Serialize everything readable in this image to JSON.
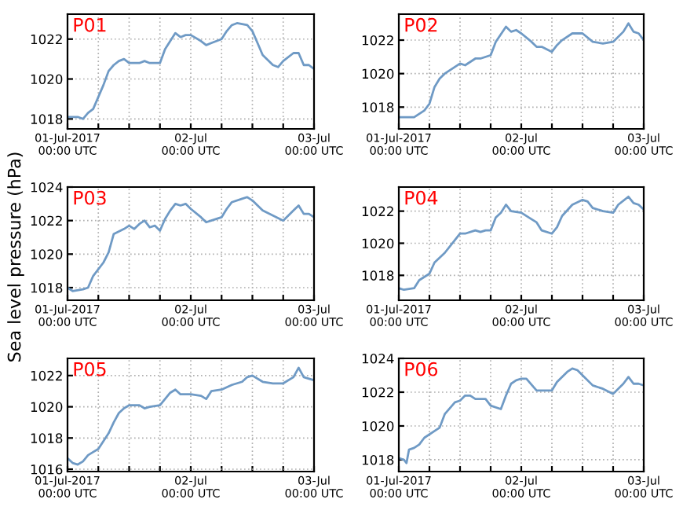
{
  "chart_data": [
    {
      "type": "line",
      "title": "P01",
      "x": [
        "2017-07-01T00:00",
        "2017-07-01T02:00",
        "2017-07-01T03:00",
        "2017-07-01T04:00",
        "2017-07-01T05:00",
        "2017-07-01T06:00",
        "2017-07-01T07:00",
        "2017-07-01T08:00",
        "2017-07-01T09:00",
        "2017-07-01T10:00",
        "2017-07-01T11:00",
        "2017-07-01T12:00",
        "2017-07-01T14:00",
        "2017-07-01T15:00",
        "2017-07-01T16:00",
        "2017-07-01T18:00",
        "2017-07-01T19:00",
        "2017-07-01T20:00",
        "2017-07-01T21:00",
        "2017-07-01T22:00",
        "2017-07-01T23:00",
        "2017-07-02T00:00",
        "2017-07-02T02:00",
        "2017-07-02T03:00",
        "2017-07-02T04:00",
        "2017-07-02T06:00",
        "2017-07-02T07:00",
        "2017-07-02T08:00",
        "2017-07-02T09:00",
        "2017-07-02T11:00",
        "2017-07-02T12:00",
        "2017-07-02T13:00",
        "2017-07-02T14:00",
        "2017-07-02T16:00",
        "2017-07-02T17:00",
        "2017-07-02T18:00",
        "2017-07-02T20:00",
        "2017-07-02T21:00",
        "2017-07-02T22:00",
        "2017-07-02T23:00",
        "2017-07-03T00:00"
      ],
      "series": [
        {
          "color": "#6f9ac5",
          "values": [
            1018.1,
            1018.1,
            1018.0,
            1018.3,
            1018.5,
            1019.1,
            1019.7,
            1020.4,
            1020.7,
            1020.9,
            1021.0,
            1020.8,
            1020.8,
            1020.9,
            1020.8,
            1020.8,
            1021.5,
            1021.9,
            1022.3,
            1022.1,
            1022.2,
            1022.2,
            1021.9,
            1021.7,
            1021.8,
            1022.0,
            1022.4,
            1022.7,
            1022.8,
            1022.7,
            1022.4,
            1021.8,
            1021.2,
            1020.7,
            1020.6,
            1020.9,
            1021.3,
            1021.3,
            1020.7,
            1020.7,
            1020.5
          ]
        }
      ],
      "xlim": [
        "2017-07-01T00:00",
        "2017-07-03T00:00"
      ],
      "ylim": [
        1017.5,
        1023.25
      ],
      "yticks": [
        1018,
        1020,
        1022
      ],
      "xticks": [
        {
          "value": "2017-07-01T00:00",
          "label": "01-Jul-2017\n00:00 UTC"
        },
        {
          "value": "2017-07-01T06:00",
          "label": null
        },
        {
          "value": "2017-07-01T12:00",
          "label": null
        },
        {
          "value": "2017-07-01T18:00",
          "label": null
        },
        {
          "value": "2017-07-02T00:00",
          "label": "02-Jul\n00:00 UTC"
        },
        {
          "value": "2017-07-02T06:00",
          "label": null
        },
        {
          "value": "2017-07-02T12:00",
          "label": null
        },
        {
          "value": "2017-07-02T18:00",
          "label": null
        },
        {
          "value": "2017-07-03T00:00",
          "label": "03-Jul\n00:00 UTC"
        }
      ],
      "grid": true
    },
    {
      "type": "line",
      "title": "P02",
      "x": [
        "2017-07-01T00:00",
        "2017-07-01T01:00",
        "2017-07-01T03:00",
        "2017-07-01T05:00",
        "2017-07-01T06:00",
        "2017-07-01T07:00",
        "2017-07-01T08:00",
        "2017-07-01T09:00",
        "2017-07-01T10:00",
        "2017-07-01T12:00",
        "2017-07-01T13:00",
        "2017-07-01T15:00",
        "2017-07-01T16:00",
        "2017-07-01T18:00",
        "2017-07-01T19:00",
        "2017-07-01T21:00",
        "2017-07-01T22:00",
        "2017-07-01T23:00",
        "2017-07-02T00:00",
        "2017-07-02T02:00",
        "2017-07-02T03:00",
        "2017-07-02T04:00",
        "2017-07-02T06:00",
        "2017-07-02T07:00",
        "2017-07-02T08:00",
        "2017-07-02T10:00",
        "2017-07-02T12:00",
        "2017-07-02T14:00",
        "2017-07-02T16:00",
        "2017-07-02T18:00",
        "2017-07-02T20:00",
        "2017-07-02T21:00",
        "2017-07-02T22:00",
        "2017-07-02T23:00",
        "2017-07-03T00:00"
      ],
      "series": [
        {
          "color": "#6f9ac5",
          "values": [
            1017.4,
            1017.4,
            1017.4,
            1017.8,
            1018.2,
            1019.2,
            1019.7,
            1020.0,
            1020.2,
            1020.6,
            1020.5,
            1020.9,
            1020.9,
            1021.1,
            1021.9,
            1022.8,
            1022.5,
            1022.6,
            1022.4,
            1021.9,
            1021.6,
            1021.6,
            1021.3,
            1021.7,
            1022.0,
            1022.4,
            1022.4,
            1021.9,
            1021.8,
            1021.9,
            1022.5,
            1023.0,
            1022.5,
            1022.4,
            1022.0
          ]
        }
      ],
      "xlim": [
        "2017-07-01T00:00",
        "2017-07-03T00:00"
      ],
      "ylim": [
        1016.7,
        1023.55
      ],
      "yticks": [
        1018,
        1020,
        1022
      ],
      "xticks": [
        {
          "value": "2017-07-01T00:00",
          "label": "01-Jul-2017\n00:00 UTC"
        },
        {
          "value": "2017-07-01T06:00",
          "label": null
        },
        {
          "value": "2017-07-01T12:00",
          "label": null
        },
        {
          "value": "2017-07-01T18:00",
          "label": null
        },
        {
          "value": "2017-07-02T00:00",
          "label": "02-Jul\n00:00 UTC"
        },
        {
          "value": "2017-07-02T06:00",
          "label": null
        },
        {
          "value": "2017-07-02T12:00",
          "label": null
        },
        {
          "value": "2017-07-02T18:00",
          "label": null
        },
        {
          "value": "2017-07-03T00:00",
          "label": "03-Jul\n00:00 UTC"
        }
      ],
      "grid": true
    },
    {
      "type": "line",
      "title": "P03",
      "ylabel": "Sea level pressure (hPa)",
      "x": [
        "2017-07-01T00:00",
        "2017-07-01T01:00",
        "2017-07-01T03:00",
        "2017-07-01T04:00",
        "2017-07-01T05:00",
        "2017-07-01T07:00",
        "2017-07-01T08:00",
        "2017-07-01T09:00",
        "2017-07-01T11:00",
        "2017-07-01T12:00",
        "2017-07-01T13:00",
        "2017-07-01T14:00",
        "2017-07-01T15:00",
        "2017-07-01T16:00",
        "2017-07-01T17:00",
        "2017-07-01T18:00",
        "2017-07-01T19:00",
        "2017-07-01T20:00",
        "2017-07-01T21:00",
        "2017-07-01T22:00",
        "2017-07-01T23:00",
        "2017-07-02T00:00",
        "2017-07-02T02:00",
        "2017-07-02T03:00",
        "2017-07-02T04:00",
        "2017-07-02T06:00",
        "2017-07-02T07:00",
        "2017-07-02T08:00",
        "2017-07-02T10:00",
        "2017-07-02T11:00",
        "2017-07-02T12:00",
        "2017-07-02T14:00",
        "2017-07-02T16:00",
        "2017-07-02T18:00",
        "2017-07-02T20:00",
        "2017-07-02T21:00",
        "2017-07-02T22:00",
        "2017-07-02T23:00",
        "2017-07-03T00:00"
      ],
      "series": [
        {
          "color": "#6f9ac5",
          "values": [
            1018.0,
            1017.8,
            1017.9,
            1018.0,
            1018.7,
            1019.5,
            1020.1,
            1021.2,
            1021.5,
            1021.7,
            1021.5,
            1021.8,
            1022.0,
            1021.6,
            1021.7,
            1021.4,
            1022.1,
            1022.6,
            1023.0,
            1022.9,
            1023.0,
            1022.7,
            1022.2,
            1021.9,
            1022.0,
            1022.2,
            1022.7,
            1023.1,
            1023.3,
            1023.4,
            1023.2,
            1022.6,
            1022.3,
            1022.0,
            1022.6,
            1022.9,
            1022.4,
            1022.4,
            1022.2
          ]
        }
      ],
      "xlim": [
        "2017-07-01T00:00",
        "2017-07-03T00:00"
      ],
      "ylim": [
        1017.25,
        1024
      ],
      "yticks": [
        1018,
        1020,
        1022,
        1024
      ],
      "xticks": [
        {
          "value": "2017-07-01T00:00",
          "label": "01-Jul-2017\n00:00 UTC"
        },
        {
          "value": "2017-07-01T06:00",
          "label": null
        },
        {
          "value": "2017-07-01T12:00",
          "label": null
        },
        {
          "value": "2017-07-01T18:00",
          "label": null
        },
        {
          "value": "2017-07-02T00:00",
          "label": "02-Jul\n00:00 UTC"
        },
        {
          "value": "2017-07-02T06:00",
          "label": null
        },
        {
          "value": "2017-07-02T12:00",
          "label": null
        },
        {
          "value": "2017-07-02T18:00",
          "label": null
        },
        {
          "value": "2017-07-03T00:00",
          "label": "03-Jul\n00:00 UTC"
        }
      ],
      "grid": true
    },
    {
      "type": "line",
      "title": "P04",
      "x": [
        "2017-07-01T00:00",
        "2017-07-01T01:00",
        "2017-07-01T03:00",
        "2017-07-01T04:00",
        "2017-07-01T06:00",
        "2017-07-01T07:00",
        "2017-07-01T09:00",
        "2017-07-01T11:00",
        "2017-07-01T12:00",
        "2017-07-01T13:00",
        "2017-07-01T15:00",
        "2017-07-01T16:00",
        "2017-07-01T17:00",
        "2017-07-01T18:00",
        "2017-07-01T19:00",
        "2017-07-01T20:00",
        "2017-07-01T21:00",
        "2017-07-01T22:00",
        "2017-07-02T00:00",
        "2017-07-02T02:00",
        "2017-07-02T03:00",
        "2017-07-02T04:00",
        "2017-07-02T06:00",
        "2017-07-02T07:00",
        "2017-07-02T08:00",
        "2017-07-02T10:00",
        "2017-07-02T12:00",
        "2017-07-02T13:00",
        "2017-07-02T14:00",
        "2017-07-02T16:00",
        "2017-07-02T18:00",
        "2017-07-02T19:00",
        "2017-07-02T21:00",
        "2017-07-02T22:00",
        "2017-07-02T23:00",
        "2017-07-03T00:00"
      ],
      "series": [
        {
          "color": "#6f9ac5",
          "values": [
            1017.2,
            1017.1,
            1017.2,
            1017.7,
            1018.1,
            1018.8,
            1019.4,
            1020.2,
            1020.6,
            1020.6,
            1020.8,
            1020.7,
            1020.8,
            1020.8,
            1021.6,
            1021.9,
            1022.4,
            1022.0,
            1021.9,
            1021.5,
            1021.3,
            1020.8,
            1020.6,
            1021.0,
            1021.7,
            1022.4,
            1022.7,
            1022.6,
            1022.2,
            1022.0,
            1021.9,
            1022.4,
            1022.9,
            1022.5,
            1022.4,
            1022.1
          ]
        }
      ],
      "xlim": [
        "2017-07-01T00:00",
        "2017-07-03T00:00"
      ],
      "ylim": [
        1016.45,
        1023.5
      ],
      "yticks": [
        1018,
        1020,
        1022
      ],
      "xticks": [
        {
          "value": "2017-07-01T00:00",
          "label": "01-Jul-2017\n00:00 UTC"
        },
        {
          "value": "2017-07-01T06:00",
          "label": null
        },
        {
          "value": "2017-07-01T12:00",
          "label": null
        },
        {
          "value": "2017-07-01T18:00",
          "label": null
        },
        {
          "value": "2017-07-02T00:00",
          "label": "02-Jul\n00:00 UTC"
        },
        {
          "value": "2017-07-02T06:00",
          "label": null
        },
        {
          "value": "2017-07-02T12:00",
          "label": null
        },
        {
          "value": "2017-07-02T18:00",
          "label": null
        },
        {
          "value": "2017-07-03T00:00",
          "label": "03-Jul\n00:00 UTC"
        }
      ],
      "grid": true
    },
    {
      "type": "line",
      "title": "P05",
      "x": [
        "2017-07-01T00:00",
        "2017-07-01T01:00",
        "2017-07-01T02:00",
        "2017-07-01T03:00",
        "2017-07-01T04:00",
        "2017-07-01T05:00",
        "2017-07-01T06:00",
        "2017-07-01T07:00",
        "2017-07-01T08:00",
        "2017-07-01T09:00",
        "2017-07-01T10:00",
        "2017-07-01T11:00",
        "2017-07-01T12:00",
        "2017-07-01T14:00",
        "2017-07-01T15:00",
        "2017-07-01T16:00",
        "2017-07-01T18:00",
        "2017-07-01T19:00",
        "2017-07-01T20:00",
        "2017-07-01T21:00",
        "2017-07-01T22:00",
        "2017-07-02T00:00",
        "2017-07-02T02:00",
        "2017-07-02T03:00",
        "2017-07-02T04:00",
        "2017-07-02T06:00",
        "2017-07-02T08:00",
        "2017-07-02T10:00",
        "2017-07-02T11:00",
        "2017-07-02T12:00",
        "2017-07-02T14:00",
        "2017-07-02T16:00",
        "2017-07-02T18:00",
        "2017-07-02T20:00",
        "2017-07-02T21:00",
        "2017-07-02T22:00",
        "2017-07-02T23:00",
        "2017-07-03T00:00"
      ],
      "series": [
        {
          "color": "#6f9ac5",
          "values": [
            1016.7,
            1016.4,
            1016.3,
            1016.5,
            1016.9,
            1017.1,
            1017.3,
            1017.8,
            1018.3,
            1019.0,
            1019.6,
            1019.9,
            1020.1,
            1020.1,
            1019.9,
            1020.0,
            1020.1,
            1020.5,
            1020.9,
            1021.1,
            1020.8,
            1020.8,
            1020.7,
            1020.5,
            1021.0,
            1021.1,
            1021.4,
            1021.6,
            1021.9,
            1022.0,
            1021.6,
            1021.5,
            1021.5,
            1021.9,
            1022.5,
            1021.9,
            1021.8,
            1021.7
          ]
        }
      ],
      "xlim": [
        "2017-07-01T00:00",
        "2017-07-03T00:00"
      ],
      "ylim": [
        1015.85,
        1023.1
      ],
      "yticks": [
        1016,
        1018,
        1020,
        1022
      ],
      "xticks": [
        {
          "value": "2017-07-01T00:00",
          "label": "01-Jul-2017\n00:00 UTC"
        },
        {
          "value": "2017-07-01T06:00",
          "label": null
        },
        {
          "value": "2017-07-01T12:00",
          "label": null
        },
        {
          "value": "2017-07-01T18:00",
          "label": null
        },
        {
          "value": "2017-07-02T00:00",
          "label": "02-Jul\n00:00 UTC"
        },
        {
          "value": "2017-07-02T06:00",
          "label": null
        },
        {
          "value": "2017-07-02T12:00",
          "label": null
        },
        {
          "value": "2017-07-02T18:00",
          "label": null
        },
        {
          "value": "2017-07-03T00:00",
          "label": "03-Jul\n00:00 UTC"
        }
      ],
      "grid": true
    },
    {
      "type": "line",
      "title": "P06",
      "x": [
        "2017-07-01T00:00",
        "2017-07-01T01:00",
        "2017-07-01T01:30",
        "2017-07-01T02:00",
        "2017-07-01T03:00",
        "2017-07-01T04:00",
        "2017-07-01T05:00",
        "2017-07-01T07:00",
        "2017-07-01T08:00",
        "2017-07-01T09:00",
        "2017-07-01T11:00",
        "2017-07-01T12:00",
        "2017-07-01T13:00",
        "2017-07-01T14:00",
        "2017-07-01T15:00",
        "2017-07-01T17:00",
        "2017-07-01T18:00",
        "2017-07-01T20:00",
        "2017-07-01T21:00",
        "2017-07-01T22:00",
        "2017-07-01T23:00",
        "2017-07-02T00:00",
        "2017-07-02T01:00",
        "2017-07-02T03:00",
        "2017-07-02T04:00",
        "2017-07-02T06:00",
        "2017-07-02T07:00",
        "2017-07-02T09:00",
        "2017-07-02T10:00",
        "2017-07-02T11:00",
        "2017-07-02T12:00",
        "2017-07-02T14:00",
        "2017-07-02T16:00",
        "2017-07-02T18:00",
        "2017-07-02T20:00",
        "2017-07-02T21:00",
        "2017-07-02T22:00",
        "2017-07-02T23:00",
        "2017-07-03T00:00"
      ],
      "series": [
        {
          "color": "#6f9ac5",
          "values": [
            1018.1,
            1018.0,
            1017.8,
            1018.6,
            1018.7,
            1018.9,
            1019.3,
            1019.7,
            1019.9,
            1020.7,
            1021.4,
            1021.5,
            1021.8,
            1021.8,
            1021.6,
            1021.6,
            1021.2,
            1021.0,
            1021.8,
            1022.5,
            1022.7,
            1022.8,
            1022.8,
            1022.1,
            1022.1,
            1022.1,
            1022.6,
            1023.2,
            1023.4,
            1023.3,
            1023.0,
            1022.4,
            1022.2,
            1021.9,
            1022.5,
            1022.9,
            1022.5,
            1022.5,
            1022.4
          ]
        }
      ],
      "xlim": [
        "2017-07-01T00:00",
        "2017-07-03T00:00"
      ],
      "ylim": [
        1017.3,
        1024
      ],
      "yticks": [
        1018,
        1020,
        1022,
        1024
      ],
      "xticks": [
        {
          "value": "2017-07-01T00:00",
          "label": "01-Jul-2017\n00:00 UTC"
        },
        {
          "value": "2017-07-01T06:00",
          "label": null
        },
        {
          "value": "2017-07-01T12:00",
          "label": null
        },
        {
          "value": "2017-07-01T18:00",
          "label": null
        },
        {
          "value": "2017-07-02T00:00",
          "label": "02-Jul\n00:00 UTC"
        },
        {
          "value": "2017-07-02T06:00",
          "label": null
        },
        {
          "value": "2017-07-02T12:00",
          "label": null
        },
        {
          "value": "2017-07-02T18:00",
          "label": null
        },
        {
          "value": "2017-07-03T00:00",
          "label": "03-Jul\n00:00 UTC"
        }
      ],
      "grid": true
    }
  ]
}
